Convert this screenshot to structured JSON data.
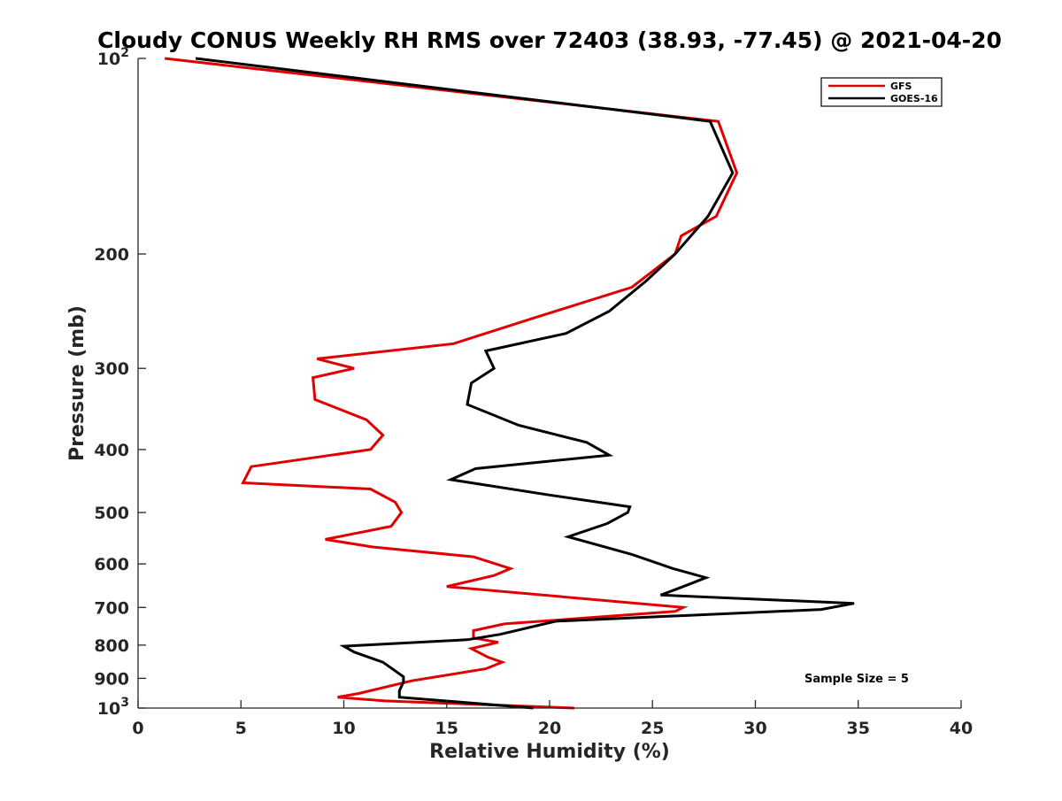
{
  "chart_data": {
    "type": "line",
    "title": "Cloudy CONUS Weekly RH RMS over 72403 (38.93, -77.45) @ 2021-04-20",
    "xlabel": "Relative Humidity (%)",
    "ylabel": "Pressure (mb)",
    "xlim": [
      0,
      40
    ],
    "ylim": [
      100,
      1000
    ],
    "y_scale": "log",
    "y_reversed": true,
    "xticks": [
      0,
      5,
      10,
      15,
      20,
      25,
      30,
      35,
      40
    ],
    "xtick_labels": [
      "0",
      "5",
      "10",
      "15",
      "20",
      "25",
      "30",
      "35",
      "40"
    ],
    "yticks": [
      100,
      200,
      300,
      400,
      500,
      600,
      700,
      800,
      900,
      1000
    ],
    "ytick_labels": [
      {
        "base": "10",
        "exp": "2"
      },
      {
        "base": "200",
        "exp": ""
      },
      {
        "base": "300",
        "exp": ""
      },
      {
        "base": "400",
        "exp": ""
      },
      {
        "base": "500",
        "exp": ""
      },
      {
        "base": "600",
        "exp": ""
      },
      {
        "base": "700",
        "exp": ""
      },
      {
        "base": "800",
        "exp": ""
      },
      {
        "base": "900",
        "exp": ""
      },
      {
        "base": "10",
        "exp": "3"
      }
    ],
    "grid": false,
    "legend_position": "top-right",
    "annotation": "Sample Size = 5",
    "series": [
      {
        "name": "GFS",
        "color": "#e00000",
        "points": [
          [
            1.3,
            100
          ],
          [
            28.2,
            125
          ],
          [
            29.1,
            150
          ],
          [
            28.1,
            175
          ],
          [
            26.4,
            187.5
          ],
          [
            26.1,
            200
          ],
          [
            24.0,
            225
          ],
          [
            19.4,
            250
          ],
          [
            15.3,
            275
          ],
          [
            8.7,
            290
          ],
          [
            10.5,
            300
          ],
          [
            8.5,
            310
          ],
          [
            8.6,
            335
          ],
          [
            11.1,
            360
          ],
          [
            11.9,
            380
          ],
          [
            11.3,
            400
          ],
          [
            5.5,
            425
          ],
          [
            5.1,
            450
          ],
          [
            11.3,
            460
          ],
          [
            12.5,
            482
          ],
          [
            12.8,
            500
          ],
          [
            12.3,
            525
          ],
          [
            9.1,
            550
          ],
          [
            11.4,
            565
          ],
          [
            16.3,
            585
          ],
          [
            18.1,
            610
          ],
          [
            17.3,
            625
          ],
          [
            15.0,
            650
          ],
          [
            26.5,
            700
          ],
          [
            26.1,
            710
          ],
          [
            17.8,
            742
          ],
          [
            16.3,
            760
          ],
          [
            16.3,
            780
          ],
          [
            17.5,
            792
          ],
          [
            16.2,
            810
          ],
          [
            17.0,
            835
          ],
          [
            17.7,
            850
          ],
          [
            16.9,
            870
          ],
          [
            13.3,
            908
          ],
          [
            10.7,
            950
          ],
          [
            9.7,
            962
          ],
          [
            12.0,
            975
          ],
          [
            21.2,
            1000
          ]
        ]
      },
      {
        "name": "GOES-16",
        "color": "#000000",
        "points": [
          [
            2.8,
            100
          ],
          [
            27.8,
            125
          ],
          [
            28.9,
            150
          ],
          [
            27.7,
            175
          ],
          [
            26.1,
            200
          ],
          [
            24.7,
            220
          ],
          [
            22.9,
            245
          ],
          [
            20.8,
            265
          ],
          [
            16.9,
            282
          ],
          [
            17.3,
            300
          ],
          [
            16.2,
            316
          ],
          [
            16.0,
            341
          ],
          [
            18.5,
            367
          ],
          [
            21.8,
            390
          ],
          [
            22.9,
            408
          ],
          [
            16.4,
            428
          ],
          [
            15.2,
            445
          ],
          [
            20.0,
            470
          ],
          [
            23.9,
            490
          ],
          [
            23.8,
            500
          ],
          [
            22.8,
            520
          ],
          [
            20.9,
            545
          ],
          [
            24.0,
            580
          ],
          [
            26.0,
            610
          ],
          [
            27.6,
            630
          ],
          [
            26.5,
            650
          ],
          [
            25.4,
            670
          ],
          [
            34.8,
            690
          ],
          [
            33.2,
            705
          ],
          [
            20.3,
            735
          ],
          [
            17.6,
            770
          ],
          [
            16.0,
            785
          ],
          [
            10.0,
            803
          ],
          [
            10.5,
            820
          ],
          [
            11.9,
            850
          ],
          [
            12.9,
            895
          ],
          [
            12.9,
            912
          ],
          [
            12.7,
            940
          ],
          [
            12.7,
            962
          ],
          [
            19.2,
            1000
          ]
        ]
      }
    ]
  }
}
